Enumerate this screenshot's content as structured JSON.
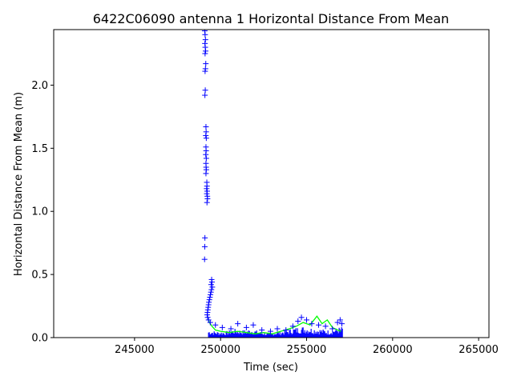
{
  "chart_data": {
    "type": "scatter",
    "title": "6422C06090 antenna 1 Horizontal Distance From Mean",
    "xlabel": "Time (sec)",
    "ylabel": "Horizontal Distance From Mean (m)",
    "xlim": [
      240300,
      265600
    ],
    "ylim": [
      0,
      2.44
    ],
    "x_ticks": [
      245000,
      250000,
      255000,
      260000,
      265000
    ],
    "x_tick_labels": [
      "245000",
      "250000",
      "255000",
      "260000",
      "265000"
    ],
    "y_ticks": [
      0.0,
      0.5,
      1.0,
      1.5,
      2.0
    ],
    "y_tick_labels": [
      "0.0",
      "0.5",
      "1.0",
      "1.5",
      "2.0"
    ],
    "grid": false,
    "legend": "none",
    "colors": {
      "series_blue": "#0000ff",
      "series_green": "#00ff00"
    },
    "series": [
      {
        "marker": "plus",
        "color": "#0000ff",
        "points": [
          [
            249080,
            2.43
          ],
          [
            249100,
            2.4
          ],
          [
            249120,
            2.36
          ],
          [
            249090,
            2.33
          ],
          [
            249110,
            2.3
          ],
          [
            249130,
            2.27
          ],
          [
            249100,
            2.25
          ],
          [
            249140,
            2.17
          ],
          [
            249120,
            2.13
          ],
          [
            249100,
            2.11
          ],
          [
            249110,
            1.96
          ],
          [
            249090,
            1.92
          ],
          [
            249150,
            1.67
          ],
          [
            249160,
            1.63
          ],
          [
            249140,
            1.6
          ],
          [
            249170,
            1.58
          ],
          [
            249150,
            1.51
          ],
          [
            249160,
            1.48
          ],
          [
            249140,
            1.45
          ],
          [
            249170,
            1.42
          ],
          [
            249150,
            1.38
          ],
          [
            249160,
            1.35
          ],
          [
            249170,
            1.33
          ],
          [
            249150,
            1.3
          ],
          [
            249200,
            1.23
          ],
          [
            249210,
            1.2
          ],
          [
            249190,
            1.18
          ],
          [
            249220,
            1.16
          ],
          [
            249200,
            1.14
          ],
          [
            249230,
            1.12
          ],
          [
            249240,
            1.1
          ],
          [
            249210,
            1.07
          ],
          [
            249090,
            0.79
          ],
          [
            249080,
            0.72
          ],
          [
            249070,
            0.62
          ],
          [
            249480,
            0.46
          ],
          [
            249500,
            0.44
          ],
          [
            249450,
            0.42
          ],
          [
            249520,
            0.4
          ],
          [
            249470,
            0.38
          ],
          [
            249440,
            0.36
          ],
          [
            249410,
            0.34
          ],
          [
            249380,
            0.32
          ],
          [
            249350,
            0.3
          ],
          [
            249320,
            0.28
          ],
          [
            249300,
            0.26
          ],
          [
            249280,
            0.24
          ],
          [
            249260,
            0.22
          ],
          [
            249240,
            0.2
          ],
          [
            249220,
            0.18
          ],
          [
            249250,
            0.16
          ],
          [
            249300,
            0.14
          ],
          [
            249400,
            0.12
          ],
          [
            249700,
            0.1
          ],
          [
            250100,
            0.08
          ],
          [
            250600,
            0.07
          ],
          [
            251000,
            0.11
          ],
          [
            251500,
            0.08
          ],
          [
            251900,
            0.1
          ],
          [
            252400,
            0.06
          ],
          [
            252900,
            0.05
          ],
          [
            253300,
            0.07
          ],
          [
            253800,
            0.06
          ],
          [
            254200,
            0.09
          ],
          [
            254500,
            0.13
          ],
          [
            254700,
            0.16
          ],
          [
            255000,
            0.14
          ],
          [
            255300,
            0.11
          ],
          [
            255700,
            0.1
          ],
          [
            256100,
            0.09
          ],
          [
            256500,
            0.07
          ],
          [
            256800,
            0.12
          ],
          [
            256950,
            0.14
          ],
          [
            257050,
            0.11
          ]
        ]
      },
      {
        "marker": "line",
        "color": "#00ff00",
        "points": [
          [
            249250,
            0.16
          ],
          [
            249350,
            0.12
          ],
          [
            249500,
            0.09
          ],
          [
            249700,
            0.06
          ],
          [
            250000,
            0.05
          ],
          [
            250500,
            0.04
          ],
          [
            251000,
            0.05
          ],
          [
            251500,
            0.04
          ],
          [
            252000,
            0.03
          ],
          [
            252500,
            0.04
          ],
          [
            253000,
            0.03
          ],
          [
            253500,
            0.05
          ],
          [
            254000,
            0.07
          ],
          [
            254400,
            0.09
          ],
          [
            254800,
            0.12
          ],
          [
            255200,
            0.1
          ],
          [
            255600,
            0.17
          ],
          [
            255900,
            0.11
          ],
          [
            256200,
            0.14
          ],
          [
            256500,
            0.08
          ],
          [
            256800,
            0.06
          ],
          [
            257000,
            0.05
          ]
        ]
      },
      {
        "marker": "band",
        "color": "#0000ff",
        "x_range": [
          249300,
          257100
        ],
        "profile": [
          [
            249300,
            0.06
          ],
          [
            249800,
            0.05
          ],
          [
            250300,
            0.05
          ],
          [
            250800,
            0.07
          ],
          [
            251300,
            0.06
          ],
          [
            251800,
            0.07
          ],
          [
            252300,
            0.05
          ],
          [
            252800,
            0.04
          ],
          [
            253300,
            0.05
          ],
          [
            253800,
            0.06
          ],
          [
            254300,
            0.08
          ],
          [
            254800,
            0.09
          ],
          [
            255300,
            0.08
          ],
          [
            255800,
            0.07
          ],
          [
            256300,
            0.06
          ],
          [
            256800,
            0.08
          ],
          [
            257100,
            0.09
          ]
        ]
      }
    ]
  }
}
